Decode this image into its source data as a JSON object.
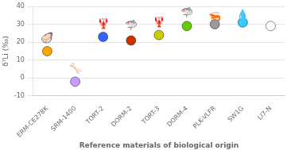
{
  "chart_data": {
    "type": "scatter",
    "categories": [
      "ERM-CE278K",
      "SRM-1400",
      "TORT-2",
      "DORM-2",
      "TORT-3",
      "DORM-4",
      "PLK-VLFR",
      "SW1G",
      "LI7-N"
    ],
    "values": [
      15,
      -2,
      23,
      21,
      24,
      29,
      30,
      31,
      29
    ],
    "colors": [
      "#FFA500",
      "#CC99FF",
      "#3366FF",
      "#CC3300",
      "#CCCC00",
      "#66CC00",
      "#999999",
      "#33CCFF",
      "#FFFFFF"
    ],
    "xlabel": "Reference materials of biological origin",
    "ylabel": "δ⁷Li (‰)",
    "ylim": [
      -10,
      40
    ],
    "yticks": [
      -10,
      0,
      10,
      20,
      30,
      40
    ],
    "grid": "y",
    "annotations": [
      {
        "x": "ERM-CE278K",
        "y": 22,
        "text": "🦪"
      },
      {
        "x": "SRM-1400",
        "y": 5,
        "text": "🦴"
      },
      {
        "x": "TORT-2",
        "y": 30,
        "text": "🦞"
      },
      {
        "x": "DORM-2",
        "y": 29,
        "text": "🦈"
      },
      {
        "x": "TORT-3",
        "y": 31,
        "text": "🦞"
      },
      {
        "x": "DORM-4",
        "y": 36,
        "text": "🦈"
      },
      {
        "x": "PLK-VLFR",
        "y": 34,
        "text": "🦐"
      },
      {
        "x": "SW1G",
        "y": 35,
        "text": "💧"
      }
    ]
  }
}
